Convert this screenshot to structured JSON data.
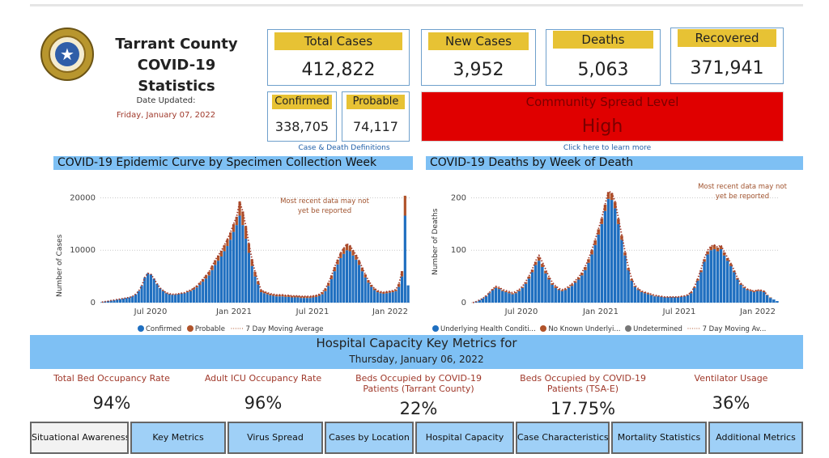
{
  "header": {
    "title_line1": "Tarrant County",
    "title_line2": "COVID-19 Statistics",
    "updated_label": "Date Updated:",
    "updated_value": "Friday, January 07, 2022"
  },
  "cards": {
    "total_cases": {
      "label": "Total Cases",
      "value": "412,822"
    },
    "new_cases": {
      "label": "New Cases",
      "value": "3,952"
    },
    "deaths": {
      "label": "Deaths",
      "value": "5,063"
    },
    "recovered": {
      "label": "Recovered",
      "value": "371,941"
    },
    "confirmed": {
      "label": "Confirmed",
      "value": "338,705"
    },
    "probable": {
      "label": "Probable",
      "value": "74,117"
    }
  },
  "spread": {
    "label": "Community Spread Level",
    "value": "High",
    "link": "Click here to learn more"
  },
  "definitions_link": "Case & Death Definitions",
  "colors": {
    "accent_yellow": "#e7c234",
    "banner_blue": "#7ec0f4",
    "spread_red": "#e00000",
    "confirmed_blue": "#1f6fc0",
    "probable_orange": "#b0532a",
    "note_red": "#a0392b"
  },
  "chart_data": [
    {
      "type": "bar",
      "title": "COVID-19 Epidemic Curve by Specimen Collection Week",
      "ylabel": "Number of Cases",
      "ylim": [
        0,
        20000
      ],
      "yticks": [
        "0",
        "10000",
        "20000"
      ],
      "xticks": [
        "Jul 2020",
        "Jan 2021",
        "Jul 2021",
        "Jan 2022"
      ],
      "annotation": "Most recent data may not yet be reported",
      "legend": [
        "Confirmed",
        "Probable",
        "7 Day Moving Average"
      ],
      "series": [
        {
          "name": "Confirmed",
          "values": [
            100,
            200,
            300,
            400,
            500,
            600,
            700,
            800,
            900,
            1000,
            1200,
            1600,
            2200,
            3200,
            4800,
            5600,
            5400,
            4600,
            3600,
            2800,
            2200,
            1800,
            1600,
            1500,
            1500,
            1600,
            1700,
            1800,
            2000,
            2200,
            2500,
            2900,
            3400,
            4000,
            4600,
            5200,
            6200,
            7200,
            8000,
            8800,
            9800,
            10800,
            12000,
            13500,
            14800,
            16600,
            14800,
            12200,
            9500,
            7000,
            5000,
            3500,
            2000,
            1800,
            1600,
            1400,
            1300,
            1200,
            1200,
            1200,
            1100,
            1100,
            1000,
            1000,
            1000,
            900,
            900,
            900,
            900,
            1000,
            1100,
            1300,
            1600,
            2200,
            3200,
            4500,
            6000,
            7300,
            8500,
            9300,
            10000,
            9800,
            9000,
            8200,
            7200,
            6000,
            4800,
            3800,
            3000,
            2400,
            2000,
            1800,
            1700,
            1800,
            1900,
            2000,
            2200,
            3000,
            5000,
            16600,
            3300
          ]
        },
        {
          "name": "Probable",
          "values": [
            0,
            0,
            0,
            0,
            0,
            0,
            0,
            0,
            0,
            0,
            0,
            0,
            0,
            0,
            0,
            0,
            0,
            0,
            0,
            0,
            100,
            100,
            100,
            100,
            100,
            100,
            100,
            100,
            200,
            200,
            300,
            300,
            400,
            500,
            600,
            700,
            800,
            900,
            1000,
            1100,
            1200,
            1300,
            1400,
            1500,
            1600,
            2700,
            2600,
            2400,
            1800,
            1300,
            900,
            600,
            400,
            300,
            300,
            300,
            300,
            300,
            300,
            300,
            300,
            300,
            300,
            300,
            300,
            300,
            300,
            300,
            300,
            300,
            300,
            300,
            400,
            500,
            600,
            700,
            800,
            900,
            1000,
            1100,
            1200,
            1100,
            1000,
            900,
            800,
            700,
            600,
            500,
            400,
            300,
            300,
            300,
            300,
            300,
            300,
            300,
            300,
            600,
            1000,
            3800,
            0
          ]
        },
        {
          "name": "7 Day Moving Average",
          "values": [
            100,
            200,
            300,
            400,
            500,
            600,
            700,
            800,
            900,
            1000,
            1200,
            1600,
            2200,
            3200,
            4800,
            5600,
            5400,
            4600,
            3600,
            2800,
            2300,
            1900,
            1700,
            1600,
            1600,
            1700,
            1800,
            1900,
            2200,
            2400,
            2800,
            3200,
            3800,
            4500,
            5200,
            5900,
            7000,
            8100,
            9000,
            9900,
            11000,
            12100,
            13400,
            15000,
            16400,
            19300,
            17400,
            14600,
            11300,
            8300,
            5900,
            4100,
            2400,
            2100,
            1900,
            1700,
            1600,
            1500,
            1500,
            1500,
            1400,
            1400,
            1300,
            1300,
            1300,
            1200,
            1200,
            1200,
            1200,
            1300,
            1400,
            1600,
            2000,
            2700,
            3800,
            5200,
            6800,
            8200,
            9500,
            10400,
            11200,
            10900,
            10000,
            9100,
            8000,
            6700,
            5400,
            4300,
            3400,
            2700,
            2300,
            2100,
            2000,
            2100,
            2200,
            2300,
            2500,
            3600,
            6000,
            null,
            null
          ]
        }
      ]
    },
    {
      "type": "bar",
      "title": "COVID-19 Deaths by Week of Death",
      "ylabel": "Number of Deaths",
      "ylim": [
        0,
        200
      ],
      "yticks": [
        "0",
        "100",
        "200"
      ],
      "xticks": [
        "Jul 2020",
        "Jan 2021",
        "Jul 2021",
        "Jan 2022"
      ],
      "annotation": "Most recent data may not yet be reported",
      "legend": [
        "Underlying Health Conditi...",
        "No Known Underlyi...",
        "Undetermined",
        "7 Day Moving Av..."
      ],
      "series": [
        {
          "name": "Underlying Health Conditi...",
          "values": [
            0,
            2,
            5,
            8,
            12,
            18,
            24,
            28,
            26,
            22,
            20,
            18,
            16,
            18,
            22,
            28,
            36,
            46,
            58,
            72,
            80,
            68,
            56,
            44,
            34,
            28,
            24,
            22,
            24,
            28,
            32,
            38,
            44,
            52,
            62,
            76,
            92,
            110,
            130,
            150,
            175,
            198,
            196,
            180,
            150,
            120,
            90,
            62,
            42,
            30,
            24,
            20,
            18,
            16,
            14,
            12,
            12,
            11,
            10,
            10,
            10,
            10,
            10,
            11,
            12,
            14,
            18,
            28,
            42,
            58,
            78,
            92,
            100,
            102,
            98,
            102,
            90,
            80,
            70,
            58,
            44,
            34,
            28,
            24,
            22,
            20,
            22,
            22,
            20,
            14,
            9,
            6,
            3
          ]
        },
        {
          "name": "No Known Underlyi...",
          "values": [
            0,
            0,
            0,
            0,
            1,
            1,
            2,
            2,
            2,
            2,
            2,
            2,
            2,
            2,
            2,
            2,
            3,
            4,
            5,
            6,
            7,
            6,
            5,
            4,
            3,
            3,
            2,
            2,
            2,
            2,
            3,
            3,
            4,
            5,
            6,
            7,
            8,
            9,
            10,
            11,
            12,
            13,
            13,
            12,
            10,
            8,
            6,
            4,
            3,
            2,
            2,
            2,
            2,
            2,
            1,
            1,
            1,
            1,
            1,
            1,
            1,
            1,
            1,
            1,
            1,
            1,
            2,
            2,
            3,
            4,
            5,
            6,
            7,
            8,
            7,
            6,
            6,
            5,
            4,
            3,
            3,
            2,
            2,
            2,
            2,
            2,
            2,
            2,
            2,
            1,
            1,
            0,
            0
          ]
        },
        {
          "name": "7 Day Moving Av...",
          "values": [
            0,
            2,
            5,
            8,
            13,
            19,
            26,
            31,
            29,
            25,
            23,
            21,
            19,
            21,
            25,
            31,
            40,
            51,
            64,
            80,
            90,
            78,
            64,
            50,
            39,
            32,
            27,
            25,
            27,
            31,
            36,
            42,
            49,
            58,
            69,
            84,
            101,
            120,
            141,
            162,
            188,
            212,
            210,
            193,
            162,
            130,
            98,
            68,
            46,
            33,
            27,
            22,
            20,
            18,
            16,
            14,
            13,
            12,
            11,
            11,
            11,
            11,
            11,
            12,
            13,
            15,
            20,
            30,
            46,
            64,
            85,
            100,
            108,
            110,
            106,
            110,
            97,
            86,
            75,
            62,
            47,
            37,
            31,
            26,
            24,
            22,
            24,
            24,
            22,
            15,
            null,
            null,
            null
          ]
        }
      ]
    }
  ],
  "hospital": {
    "title": "Hospital Capacity Key Metrics for",
    "date": "Thursday, January 06, 2022",
    "metrics": [
      {
        "label": "Total Bed Occupancy Rate",
        "value": "94%"
      },
      {
        "label": "Adult ICU Occupancy Rate",
        "value": "96%"
      },
      {
        "label": "Beds Occupied by COVID-19 Patients (Tarrant County)",
        "value": "22%"
      },
      {
        "label": "Beds Occupied by COVID-19 Patients (TSA-E)",
        "value": "17.75%"
      },
      {
        "label": "Ventilator Usage",
        "value": "36%"
      }
    ]
  },
  "tabs": [
    "Situational Awareness",
    "Key Metrics",
    "Virus Spread",
    "Cases by Location",
    "Hospital Capacity",
    "Case Characteristics",
    "Mortality Statistics",
    "Additional Metrics"
  ]
}
